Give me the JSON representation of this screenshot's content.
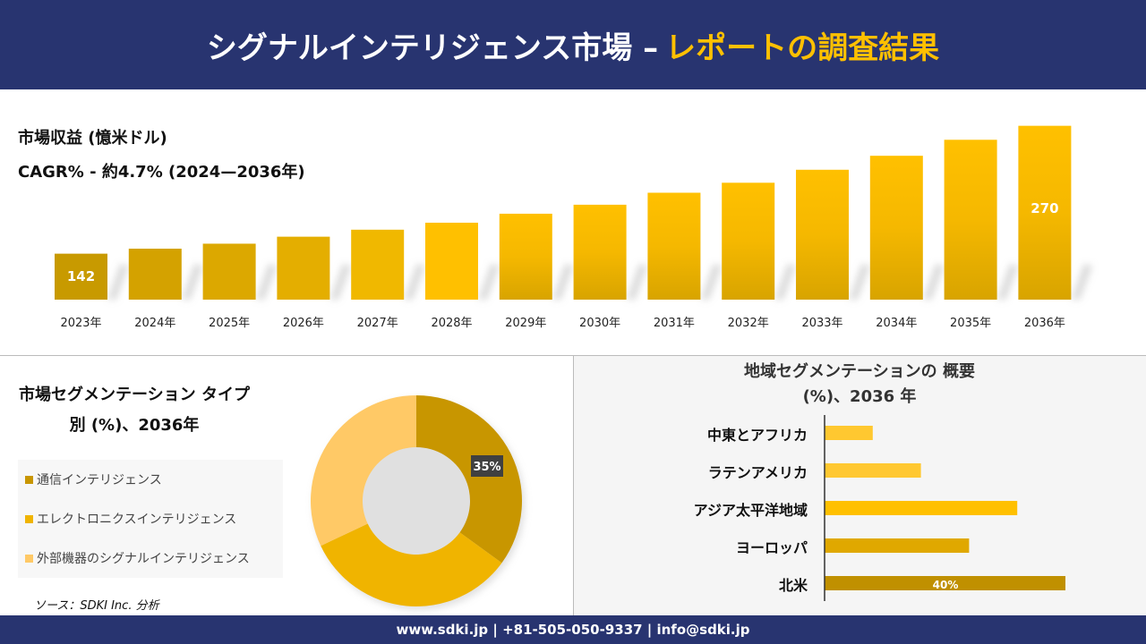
{
  "header": {
    "title": "シグナルインテリジェンス市場 –",
    "title_accent": "レポートの調査結果"
  },
  "colors": {
    "navy": "#283470",
    "accent": "#ffc000"
  },
  "chart_data": [
    {
      "type": "bar",
      "title": "市場収益 (憶米ドル)",
      "subtitle": "CAGR% - 約4.7% (2024—2036年)",
      "categories": [
        "2023年",
        "2024年",
        "2025年",
        "2026年",
        "2027年",
        "2028年",
        "2029年",
        "2030年",
        "2031年",
        "2032年",
        "2033年",
        "2034年",
        "2035年",
        "2036年"
      ],
      "values": [
        142,
        147,
        152,
        159,
        166,
        173,
        182,
        191,
        203,
        213,
        226,
        240,
        256,
        270
      ],
      "data_labels": {
        "0": "142",
        "13": "270"
      }
    },
    {
      "type": "pie",
      "title": "市場セグメンテーション タイプ別 (%)、2036年",
      "categories": [
        "通信インテリジェンス",
        "エレクトロニクスインテリジェンス",
        "外部機器のシグナルインテリジェンス"
      ],
      "values": [
        35,
        33,
        32
      ],
      "colors": [
        "#c89600",
        "#f0b400",
        "#ffc966"
      ],
      "data_label": "35%"
    },
    {
      "type": "bar",
      "orientation": "horizontal",
      "title": "地域セグメンテーションの 概要 (%)、2036 年",
      "categories": [
        "中東とアフリカ",
        "ラテンアメリカ",
        "アジア太平洋地域",
        "ヨーロッパ",
        "北米"
      ],
      "values": [
        8,
        16,
        32,
        24,
        40
      ],
      "colors": [
        "#ffc830",
        "#ffc830",
        "#ffc000",
        "#e0a800",
        "#c09000"
      ],
      "data_label": "40%"
    }
  ],
  "source": "ソース：SDKI Inc. 分析",
  "footer": "www.sdki.jp | +81-505-050-9337 | info@sdki.jp"
}
